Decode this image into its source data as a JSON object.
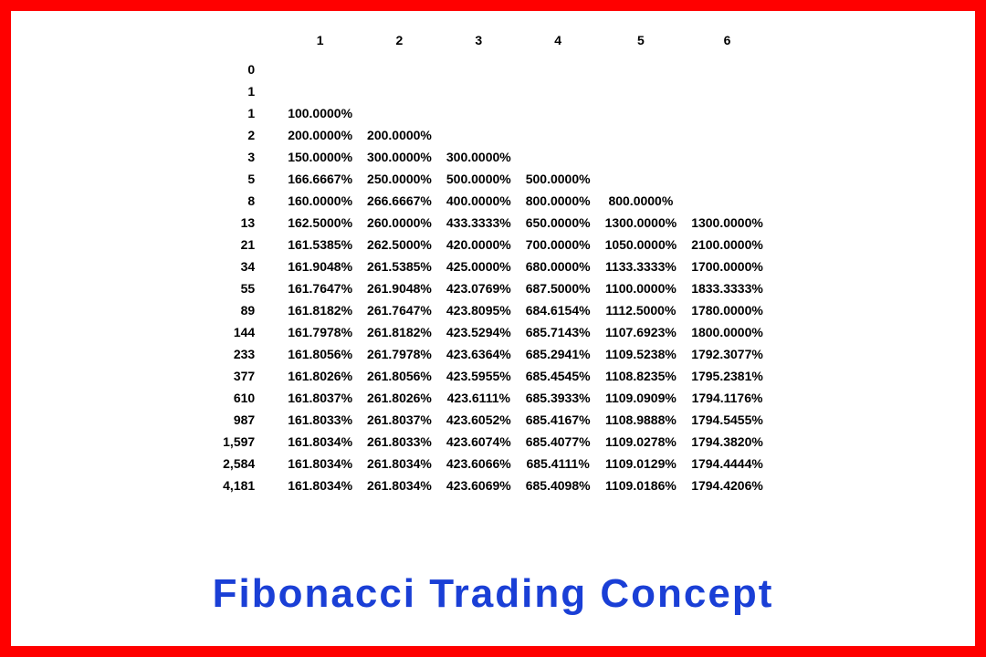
{
  "title": "Fibonacci Trading Concept",
  "title_color": "#1a3fd6",
  "border_color": "#ff0000",
  "background_color": "#ffffff",
  "text_color": "#000000",
  "table": {
    "type": "table",
    "font_size_pt": 10,
    "font_weight": "bold",
    "columns": [
      "1",
      "2",
      "3",
      "4",
      "5",
      "6"
    ],
    "row_labels": [
      "0",
      "1",
      "1",
      "2",
      "3",
      "5",
      "8",
      "13",
      "21",
      "34",
      "55",
      "89",
      "144",
      "233",
      "377",
      "610",
      "987",
      "1,597",
      "2,584",
      "4,181"
    ],
    "rows": [
      [
        "",
        "",
        "",
        "",
        "",
        ""
      ],
      [
        "",
        "",
        "",
        "",
        "",
        ""
      ],
      [
        "100.0000%",
        "",
        "",
        "",
        "",
        ""
      ],
      [
        "200.0000%",
        "200.0000%",
        "",
        "",
        "",
        ""
      ],
      [
        "150.0000%",
        "300.0000%",
        "300.0000%",
        "",
        "",
        ""
      ],
      [
        "166.6667%",
        "250.0000%",
        "500.0000%",
        "500.0000%",
        "",
        ""
      ],
      [
        "160.0000%",
        "266.6667%",
        "400.0000%",
        "800.0000%",
        "800.0000%",
        ""
      ],
      [
        "162.5000%",
        "260.0000%",
        "433.3333%",
        "650.0000%",
        "1300.0000%",
        "1300.0000%"
      ],
      [
        "161.5385%",
        "262.5000%",
        "420.0000%",
        "700.0000%",
        "1050.0000%",
        "2100.0000%"
      ],
      [
        "161.9048%",
        "261.5385%",
        "425.0000%",
        "680.0000%",
        "1133.3333%",
        "1700.0000%"
      ],
      [
        "161.7647%",
        "261.9048%",
        "423.0769%",
        "687.5000%",
        "1100.0000%",
        "1833.3333%"
      ],
      [
        "161.8182%",
        "261.7647%",
        "423.8095%",
        "684.6154%",
        "1112.5000%",
        "1780.0000%"
      ],
      [
        "161.7978%",
        "261.8182%",
        "423.5294%",
        "685.7143%",
        "1107.6923%",
        "1800.0000%"
      ],
      [
        "161.8056%",
        "261.7978%",
        "423.6364%",
        "685.2941%",
        "1109.5238%",
        "1792.3077%"
      ],
      [
        "161.8026%",
        "261.8056%",
        "423.5955%",
        "685.4545%",
        "1108.8235%",
        "1795.2381%"
      ],
      [
        "161.8037%",
        "261.8026%",
        "423.6111%",
        "685.3933%",
        "1109.0909%",
        "1794.1176%"
      ],
      [
        "161.8033%",
        "261.8037%",
        "423.6052%",
        "685.4167%",
        "1108.9888%",
        "1794.5455%"
      ],
      [
        "161.8034%",
        "261.8033%",
        "423.6074%",
        "685.4077%",
        "1109.0278%",
        "1794.3820%"
      ],
      [
        "161.8034%",
        "261.8034%",
        "423.6066%",
        "685.4111%",
        "1109.0129%",
        "1794.4444%"
      ],
      [
        "161.8034%",
        "261.8034%",
        "423.6069%",
        "685.4098%",
        "1109.0186%",
        "1794.4206%"
      ]
    ]
  }
}
